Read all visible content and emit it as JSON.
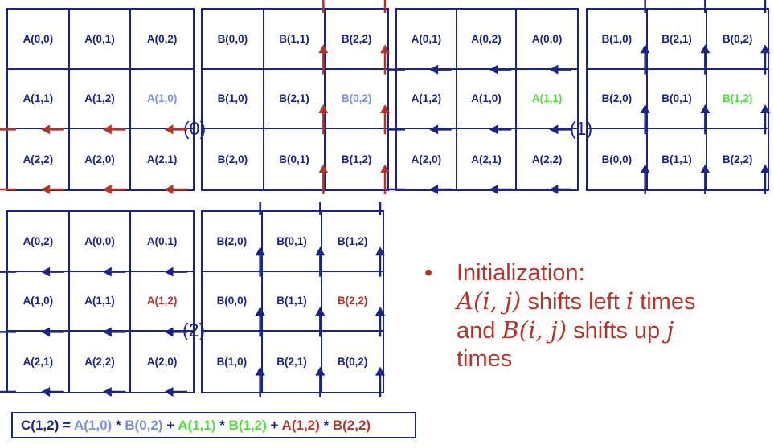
{
  "colors": {
    "navy": "#1b2484",
    "red": "#b3342a",
    "blue_highlight": "#7b8fe0",
    "green_highlight": "#4ddd3c",
    "plain_text": "#1b2484"
  },
  "panels": [
    {
      "name": "a-step-0",
      "cells": [
        [
          "A(0,0)",
          "A(0,1)",
          "A(0,2)"
        ],
        [
          "A(1,1)",
          "A(1,2)",
          "A(1,0)"
        ],
        [
          "A(2,2)",
          "A(2,0)",
          "A(2,1)"
        ]
      ],
      "highlight": {
        "row": 1,
        "col": 2,
        "color": "blue_highlight"
      },
      "arrows": "left",
      "arrow_color": "red",
      "arrow_rows": [
        1,
        2
      ]
    },
    {
      "name": "b-step-0",
      "cells": [
        [
          "B(0,0)",
          "B(1,1)",
          "B(2,2)"
        ],
        [
          "B(1,0)",
          "B(2,1)",
          "B(0,2)"
        ],
        [
          "B(2,0)",
          "B(0,1)",
          "B(1,2)"
        ]
      ],
      "highlight": {
        "row": 1,
        "col": 2,
        "color": "blue_highlight"
      },
      "arrows": "up",
      "arrow_color": "red",
      "arrow_cols": [
        1,
        2
      ]
    },
    {
      "name": "a-step-1",
      "cells": [
        [
          "A(0,1)",
          "A(0,2)",
          "A(0,0)"
        ],
        [
          "A(1,2)",
          "A(1,0)",
          "A(1,1)"
        ],
        [
          "A(2,0)",
          "A(2,1)",
          "A(2,2)"
        ]
      ],
      "highlight": {
        "row": 1,
        "col": 2,
        "color": "green_highlight"
      },
      "arrows": "left",
      "arrow_color": "navy",
      "arrow_rows": [
        0,
        1,
        2
      ]
    },
    {
      "name": "b-step-1",
      "cells": [
        [
          "B(1,0)",
          "B(2,1)",
          "B(0,2)"
        ],
        [
          "B(2,0)",
          "B(0,1)",
          "B(1,2)"
        ],
        [
          "B(0,0)",
          "B(1,1)",
          "B(2,2)"
        ]
      ],
      "highlight": {
        "row": 1,
        "col": 2,
        "color": "green_highlight"
      },
      "arrows": "up",
      "arrow_color": "navy",
      "arrow_cols": [
        0,
        1,
        2
      ]
    },
    {
      "name": "a-step-2",
      "cells": [
        [
          "A(0,2)",
          "A(0,0)",
          "A(0,1)"
        ],
        [
          "A(1,0)",
          "A(1,1)",
          "A(1,2)"
        ],
        [
          "A(2,1)",
          "A(2,2)",
          "A(2,0)"
        ]
      ],
      "highlight": {
        "row": 1,
        "col": 2,
        "color": "red"
      },
      "arrows": "left",
      "arrow_color": "navy",
      "arrow_rows": [
        0,
        1,
        2
      ]
    },
    {
      "name": "b-step-2",
      "cells": [
        [
          "B(2,0)",
          "B(0,1)",
          "B(1,2)"
        ],
        [
          "B(0,0)",
          "B(1,1)",
          "B(2,2)"
        ],
        [
          "B(1,0)",
          "B(2,1)",
          "B(0,2)"
        ]
      ],
      "highlight": {
        "row": 1,
        "col": 2,
        "color": "red"
      },
      "arrows": "up",
      "arrow_color": "navy",
      "arrow_cols": [
        0,
        1,
        2
      ]
    }
  ],
  "step_labels": [
    "(0)",
    "(1)",
    "(2)"
  ],
  "bullet": {
    "marker": "•",
    "heading": "Initialization:",
    "line1_var": "A(i, j)",
    "line1_mid": " shifts left ",
    "line1_var2": "i",
    "line1_end": " times",
    "line2_pre": "and ",
    "line2_var": "B(i, j)",
    "line2_mid": " shifts up ",
    "line2_var2": "j",
    "line3": "times"
  },
  "formula": {
    "lhs": "C(1,2) = ",
    "t1a": "A(1,0)",
    "op1": " * ",
    "t1b": "B(0,2)",
    "plus1": " + ",
    "t2a": "A(1,1)",
    "op2": " * ",
    "t2b": "B(1,2)",
    "plus2": " + ",
    "t3a": "A(1,2)",
    "op3": " * ",
    "t3b": "B(2,2)"
  }
}
